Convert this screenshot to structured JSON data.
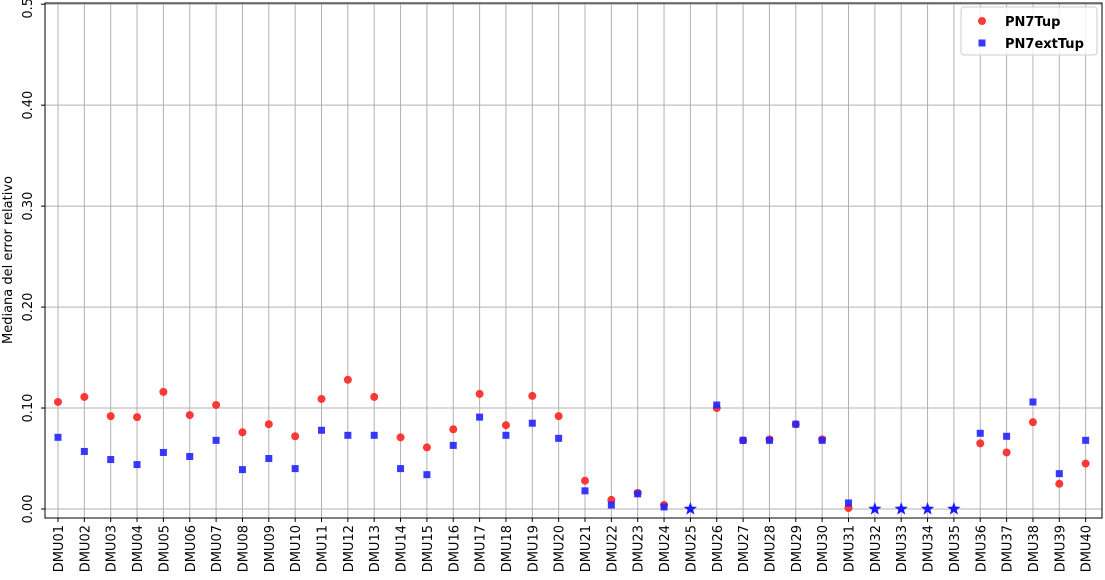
{
  "chart_data": {
    "type": "scatter",
    "title": "",
    "xlabel": "",
    "ylabel": "Mediana del error relativo",
    "ylim": [
      0,
      0.5
    ],
    "yticks": [
      "0.00",
      "0.10",
      "0.20",
      "0.30",
      "0.40",
      "0.50"
    ],
    "ytick_values": [
      0,
      0.1,
      0.2,
      0.3,
      0.4,
      0.5
    ],
    "grid": true,
    "legend_position": "top-right",
    "categories": [
      "DMU01",
      "DMU02",
      "DMU03",
      "DMU04",
      "DMU05",
      "DMU06",
      "DMU07",
      "DMU08",
      "DMU09",
      "DMU10",
      "DMU11",
      "DMU12",
      "DMU13",
      "DMU14",
      "DMU15",
      "DMU16",
      "DMU17",
      "DMU18",
      "DMU19",
      "DMU20",
      "DMU21",
      "DMU22",
      "DMU23",
      "DMU24",
      "DMU25",
      "DMU26",
      "DMU27",
      "DMU28",
      "DMU29",
      "DMU30",
      "DMU31",
      "DMU32",
      "DMU33",
      "DMU34",
      "DMU35",
      "DMU36",
      "DMU37",
      "DMU38",
      "DMU39",
      "DMU40"
    ],
    "series": [
      {
        "name": "PN7Tup",
        "color": "#ff2222",
        "marker": "circle",
        "values": [
          0.106,
          0.111,
          0.092,
          0.091,
          0.116,
          0.093,
          0.103,
          0.076,
          0.084,
          0.072,
          0.109,
          0.128,
          0.111,
          0.071,
          0.061,
          0.079,
          0.114,
          0.083,
          0.112,
          0.092,
          0.028,
          0.009,
          0.016,
          0.004,
          0.0,
          0.1,
          0.068,
          0.069,
          0.084,
          0.069,
          0.001,
          0.0,
          0.0,
          0.0,
          0.0,
          0.065,
          0.056,
          0.086,
          0.025,
          0.045
        ]
      },
      {
        "name": "PN7extTup",
        "color": "#2222ff",
        "marker": "square",
        "values": [
          0.071,
          0.057,
          0.049,
          0.044,
          0.056,
          0.052,
          0.068,
          0.039,
          0.05,
          0.04,
          0.078,
          0.073,
          0.073,
          0.04,
          0.034,
          0.063,
          0.091,
          0.073,
          0.085,
          0.07,
          0.018,
          0.004,
          0.015,
          0.002,
          0.0,
          0.103,
          0.068,
          0.068,
          0.084,
          0.068,
          0.006,
          0.0,
          0.0,
          0.0,
          0.0,
          0.075,
          0.072,
          0.106,
          0.035,
          0.068
        ]
      }
    ],
    "star_markers": {
      "color": "#1a1aff",
      "categories": [
        "DMU25",
        "DMU32",
        "DMU33",
        "DMU34",
        "DMU35"
      ],
      "value": 0.0
    }
  }
}
